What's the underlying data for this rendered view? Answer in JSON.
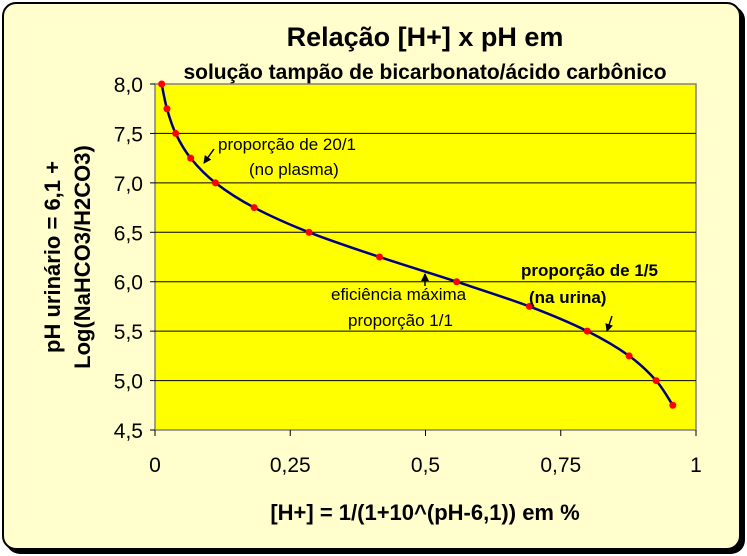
{
  "chart_data": {
    "type": "line",
    "title": "Relação [H+] x pH em",
    "subtitle": "solução tampão de bicarbonato/ácido carbônico",
    "xlabel": "[H+] = 1/(1+10^(pH-6,1)) em %",
    "ylabel_line1": "pH urinário = 6,1 +",
    "ylabel_line2": "Log(NaHCO3/H2CO3)",
    "xlim": [
      0,
      1
    ],
    "ylim": [
      4.5,
      8.0
    ],
    "x_ticks": [
      "0",
      "0,25",
      "0,5",
      "0,75",
      "1"
    ],
    "x_tick_values": [
      0,
      0.25,
      0.5,
      0.75,
      1
    ],
    "y_ticks": [
      "4,5",
      "5,0",
      "5,5",
      "6,0",
      "6,5",
      "7,0",
      "7,5",
      "8,0"
    ],
    "y_tick_values": [
      4.5,
      5.0,
      5.5,
      6.0,
      6.5,
      7.0,
      7.5,
      8.0
    ],
    "grid": "horizontal",
    "plot_background": "#ffff00",
    "line_color": "#000080",
    "marker_color": "#ff0000",
    "points": [
      {
        "x": 0.0123,
        "y": 8.0
      },
      {
        "x": 0.0221,
        "y": 7.75
      },
      {
        "x": 0.0382,
        "y": 7.5
      },
      {
        "x": 0.0659,
        "y": 7.25
      },
      {
        "x": 0.1118,
        "y": 7.0
      },
      {
        "x": 0.1833,
        "y": 6.75
      },
      {
        "x": 0.2847,
        "y": 6.5
      },
      {
        "x": 0.4151,
        "y": 6.25
      },
      {
        "x": 0.5575,
        "y": 6.0
      },
      {
        "x": 0.692,
        "y": 5.75
      },
      {
        "x": 0.799,
        "y": 5.5
      },
      {
        "x": 0.8763,
        "y": 5.25
      },
      {
        "x": 0.9262,
        "y": 5.0
      },
      {
        "x": 0.9571,
        "y": 4.75
      }
    ],
    "annotations": [
      {
        "lines": [
          "proporção de 20/1",
          "(no plasma)"
        ],
        "bold": false
      },
      {
        "lines": [
          "eficiência máxima",
          "proporção 1/1"
        ],
        "bold": false
      },
      {
        "lines": [
          "proporção de 1/5",
          "(na urina)"
        ],
        "bold": true
      }
    ]
  }
}
